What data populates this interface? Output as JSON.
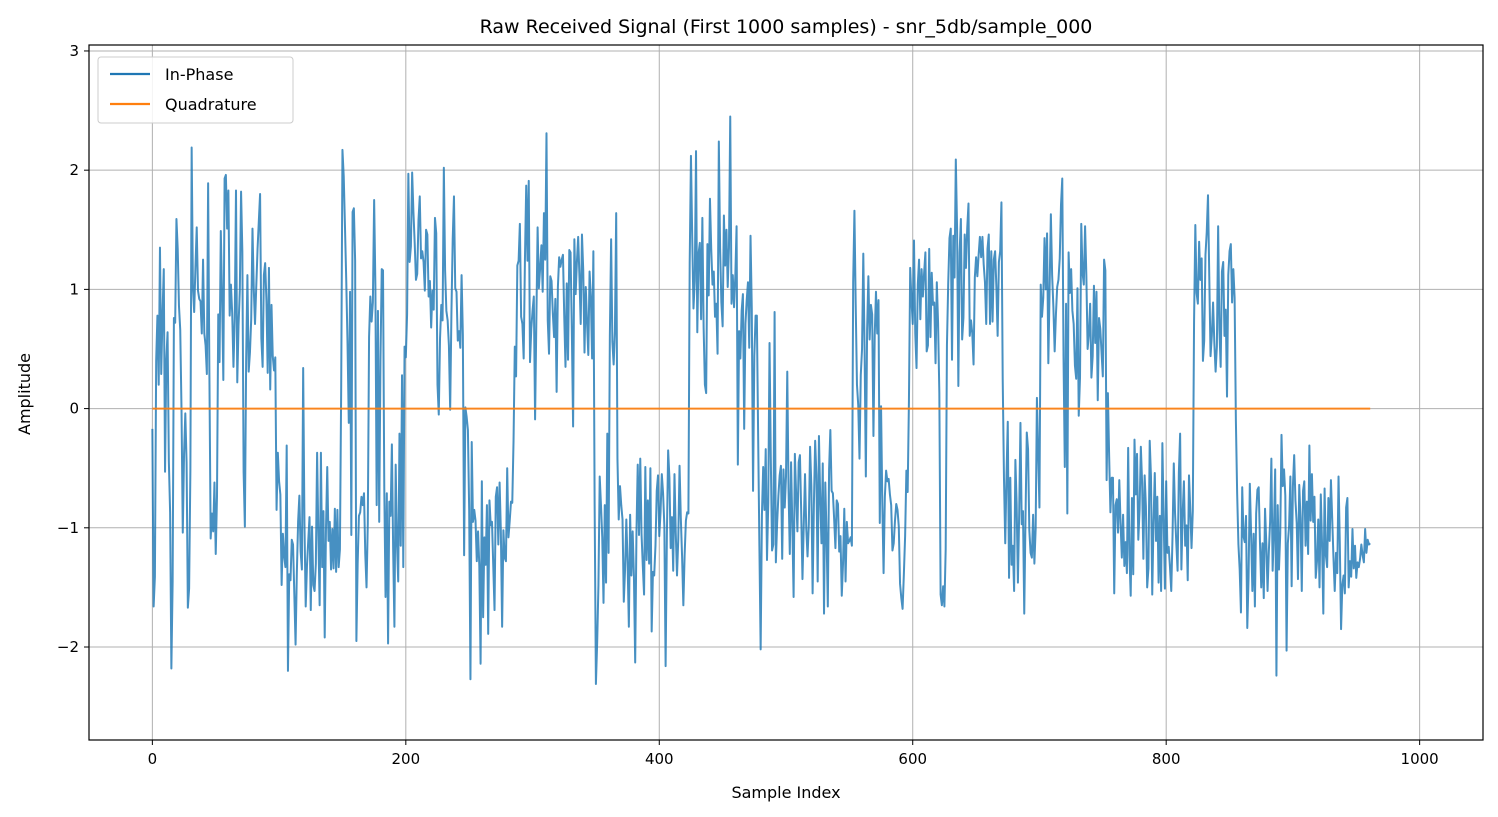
{
  "chart_data": {
    "type": "line",
    "title": "Raw Received Signal (First 1000 samples) - snr_5db/sample_000",
    "xlabel": "Sample Index",
    "ylabel": "Amplitude",
    "xlim": [
      -50,
      1050
    ],
    "ylim": [
      -2.78,
      3.05
    ],
    "x_ticks": [
      0,
      200,
      400,
      600,
      800,
      1000
    ],
    "y_ticks": [
      -2,
      -1,
      0,
      1,
      2,
      3
    ],
    "x_tick_labels": [
      "0",
      "200",
      "400",
      "600",
      "800",
      "1000"
    ],
    "y_tick_labels": [
      "−2",
      "−1",
      "0",
      "1",
      "2",
      "3"
    ],
    "grid": true,
    "legend_position": "top-left",
    "series": [
      {
        "name": "In-Phase",
        "color": "#1f77b4",
        "x_start": 0,
        "x_step": 1,
        "values": [
          -0.17,
          -1.66,
          -1.41,
          0.4,
          0.78,
          0.2,
          1.35,
          0.29,
          0.79,
          1.17,
          -0.53,
          0.41,
          0.64,
          -0.44,
          -0.87,
          -2.18,
          -1.45,
          0.76,
          0.72,
          1.59,
          1.34,
          0.86,
          0.66,
          -0.01,
          -1.04,
          -0.38,
          -0.04,
          -0.45,
          -1.67,
          -1.51,
          -0.52,
          2.19,
          1.02,
          0.81,
          1.19,
          1.52,
          0.99,
          0.92,
          0.9,
          0.63,
          1.25,
          0.63,
          0.53,
          0.29,
          1.89,
          0.3,
          -1.09,
          -0.88,
          -1.03,
          -0.62,
          -1.22,
          -0.74,
          0.79,
          0.39,
          1.49,
          0.94,
          0.24,
          1.93,
          1.96,
          1.51,
          1.83,
          0.78,
          1.04,
          0.8,
          0.35,
          0.76,
          1.83,
          0.22,
          0.7,
          0.99,
          1.82,
          1.32,
          -0.53,
          -0.99,
          0.4,
          1.12,
          0.31,
          0.47,
          0.75,
          1.51,
          1.01,
          0.71,
          1.03,
          1.34,
          1.57,
          1.8,
          0.59,
          0.35,
          1.12,
          1.22,
          0.91,
          0.3,
          1.18,
          0.16,
          0.87,
          0.44,
          0.32,
          0.43,
          -0.85,
          -0.37,
          -0.61,
          -0.72,
          -1.48,
          -1.05,
          -1.24,
          -1.33,
          -0.31,
          -2.2,
          -1.39,
          -1.44,
          -1.1,
          -1.14,
          -1.55,
          -1.98,
          -1.38,
          -0.95,
          -0.73,
          -1.2,
          -1.35,
          0.34,
          -0.96,
          -1.66,
          -1.32,
          -1.11,
          -0.91,
          -1.69,
          -0.99,
          -1.48,
          -1.53,
          -1.3,
          -0.37,
          -1.07,
          -1.65,
          -0.37,
          -1.33,
          -0.86,
          -1.92,
          -1.01,
          -0.49,
          -1.11,
          -0.95,
          -1.35,
          -1.01,
          -1.34,
          -0.84,
          -1.37,
          -0.85,
          -1.33,
          -1.18,
          0.18,
          2.17,
          1.95,
          1.52,
          1.07,
          0.55,
          -0.12,
          0.98,
          -1.06,
          1.65,
          1.68,
          1.24,
          -1.95,
          -1.3,
          -0.9,
          -0.87,
          -0.74,
          -0.81,
          -0.71,
          -1.22,
          -1.5,
          -0.96,
          0.6,
          0.94,
          0.73,
          0.89,
          1.75,
          1.02,
          -0.81,
          0.82,
          -0.95,
          0.41,
          1.17,
          1.16,
          -0.66,
          -1.58,
          -0.71,
          -1.97,
          -0.78,
          -0.9,
          -0.3,
          -1.18,
          -1.83,
          -0.47,
          -1.13,
          -1.45,
          -0.21,
          -1.15,
          0.28,
          -1.33,
          0.52,
          0.43,
          0.79,
          1.97,
          1.23,
          1.36,
          1.98,
          1.65,
          1.39,
          1.08,
          1.13,
          1.58,
          1.78,
          1.26,
          1.32,
          1.23,
          0.99,
          1.5,
          1.46,
          0.94,
          1.07,
          0.68,
          0.99,
          0.83,
          1.6,
          1.47,
          0.2,
          -0.05,
          0.59,
          0.87,
          0.74,
          2.02,
          1.16,
          0.82,
          0.74,
          0.53,
          -0.01,
          0.81,
          1.42,
          1.78,
          1.01,
          0.98,
          0.57,
          0.65,
          0.51,
          1.12,
          0.62,
          -1.23,
          0.01,
          -0.07,
          -0.18,
          -0.85,
          -2.27,
          -0.28,
          -0.95,
          -0.85,
          -0.94,
          -1.28,
          -1.03,
          -1.32,
          -2.14,
          -0.61,
          -1.75,
          -1.08,
          -1.31,
          -0.81,
          -1.89,
          -0.77,
          -0.98,
          -0.95,
          -1.32,
          -1.69,
          -0.74,
          -0.66,
          -1.14,
          -0.62,
          -1.03,
          -1.83,
          -1.02,
          -1.25,
          -1.28,
          -0.5,
          -1.08,
          -0.94,
          -0.78,
          -0.79,
          -0.27,
          0.52,
          0.27,
          1.2,
          1.24,
          1.55,
          0.77,
          0.71,
          0.42,
          1.25,
          1.87,
          1.24,
          1.91,
          0.39,
          0.67,
          0.82,
          0.94,
          -0.09,
          0.74,
          1.52,
          1.01,
          1.18,
          1.37,
          0.98,
          1.64,
          1.25,
          2.31,
          0.74,
          0.46,
          1.11,
          1.07,
          0.8,
          0.6,
          0.92,
          0.14,
          1.02,
          1.27,
          1.19,
          1.25,
          1.29,
          0.78,
          0.35,
          1.05,
          0.41,
          1.33,
          1.31,
          0.66,
          -0.15,
          1.42,
          0.96,
          1.23,
          1.44,
          1.11,
          0.71,
          1.46,
          1.16,
          0.47,
          1.02,
          0.72,
          0.45,
          1.15,
          0.94,
          0.42,
          1.32,
          -0.81,
          -2.31,
          -1.96,
          -1.48,
          -0.57,
          -0.81,
          -1.08,
          -1.63,
          -0.81,
          -1.46,
          -0.21,
          -1.21,
          0.61,
          1.42,
          0.56,
          0.37,
          0.65,
          1.64,
          -0.42,
          -0.93,
          -0.65,
          -0.81,
          -0.93,
          -1.62,
          -1.35,
          -0.93,
          -1.29,
          -1.83,
          -0.89,
          -1.4,
          -1.03,
          -1.41,
          -2.13,
          -1.04,
          -0.47,
          -1.06,
          -0.42,
          -1.05,
          -1.32,
          -1.56,
          -0.49,
          -1.27,
          -0.77,
          -1.3,
          -0.5,
          -1.87,
          -1.37,
          -1.4,
          -1.15,
          -0.69,
          -0.56,
          -1.07,
          -0.87,
          -0.55,
          -0.71,
          -0.98,
          -2.16,
          -1.06,
          -0.35,
          -0.58,
          -1.17,
          -0.91,
          -1.36,
          -0.55,
          -1.04,
          -1.4,
          -1.09,
          -0.48,
          -0.92,
          -1.24,
          -1.65,
          -1.23,
          -0.94,
          -0.87,
          -0.88,
          1.22,
          2.12,
          1.44,
          0.84,
          1.07,
          2.16,
          0.64,
          1.3,
          1.39,
          0.75,
          1.6,
          0.68,
          0.2,
          0.13,
          1.38,
          0.95,
          1.76,
          1.34,
          1.04,
          1.15,
          0.77,
          0.88,
          0.46,
          2.24,
          1.35,
          0.89,
          0.69,
          1.62,
          1.2,
          1.5,
          1.02,
          1.35,
          2.45,
          0.88,
          1.12,
          0.85,
          1.11,
          1.53,
          -0.47,
          0.65,
          0.42,
          0.82,
          0.96,
          -0.17,
          0.71,
          0.91,
          1.06,
          0.51,
          1.45,
          0.84,
          -0.69,
          0.44,
          0.78,
          0.78,
          -0.21,
          -1.15,
          -2.02,
          -0.89,
          -0.49,
          -0.85,
          -0.34,
          -1.27,
          -0.79,
          0.55,
          -0.41,
          -1.19,
          -1.14,
          0.81,
          -1.29,
          -0.96,
          -0.73,
          -0.56,
          -0.48,
          -1.26,
          -0.51,
          -0.83,
          -0.57,
          0.31,
          -0.67,
          -1.22,
          -0.45,
          -0.98,
          -1.58,
          -0.38,
          -0.72,
          -1.03,
          -0.45,
          -0.39,
          -0.87,
          -1.43,
          -0.98,
          -0.55,
          -1.01,
          -1.24,
          -0.97,
          -0.32,
          -0.65,
          -1.55,
          -0.81,
          -0.27,
          -0.56,
          -1.45,
          -0.23,
          -0.76,
          -1.13,
          -0.46,
          -1.72,
          -0.62,
          -1.07,
          -1.66,
          -0.51,
          -0.18,
          -0.69,
          -0.71,
          -0.93,
          -1.17,
          -0.77,
          -0.8,
          -1.2,
          -1.07,
          -1.57,
          -1.3,
          -0.84,
          -1.45,
          -0.95,
          -1.13,
          -1.11,
          -1.08,
          -1.15,
          1.06,
          1.66,
          0.87,
          0.2,
          0.03,
          -0.42,
          0.28,
          0.5,
          1.3,
          0.51,
          -0.57,
          0.66,
          1.11,
          0.58,
          0.87,
          0.79,
          -0.23,
          0.61,
          0.98,
          0.63,
          0.91,
          -0.96,
          0.02,
          -0.79,
          -1.38,
          -0.74,
          -0.52,
          -0.61,
          -0.59,
          -0.72,
          -0.81,
          -1.19,
          -1.13,
          -0.94,
          -0.8,
          -0.85,
          -0.99,
          -1.47,
          -1.59,
          -1.68,
          -1.39,
          -1.07,
          -0.52,
          -0.7,
          0.06,
          1.18,
          0.91,
          0.71,
          1.41,
          0.63,
          0.34,
          1.04,
          1.25,
          0.75,
          1.17,
          0.94,
          1.14,
          1.31,
          0.48,
          0.53,
          1.34,
          0.6,
          1.14,
          0.87,
          0.89,
          0.38,
          1.06,
          0.72,
          0.13,
          -1.56,
          -1.65,
          -1.49,
          -1.66,
          -1.18,
          0.53,
          1.05,
          1.43,
          1.51,
          0.41,
          1.45,
          1.1,
          2.09,
          1.51,
          0.19,
          1.31,
          1.59,
          0.58,
          0.76,
          1.46,
          1.18,
          1.51,
          1.72,
          0.61,
          0.74,
          0.63,
          0.37,
          1.1,
          1.27,
          1.11,
          1.29,
          1.44,
          1.27,
          1.44,
          1.21,
          1.06,
          0.71,
          1.34,
          1.46,
          0.71,
          1.32,
          0.73,
          1.25,
          1.32,
          1.02,
          0.61,
          1.23,
          1.32,
          1.73,
          0.25,
          -0.58,
          -1.13,
          -0.56,
          -0.11,
          -1.42,
          -0.58,
          -1.31,
          -1.15,
          -1.53,
          -0.43,
          -0.8,
          -1.46,
          -0.88,
          -0.12,
          -0.97,
          -0.86,
          -1.72,
          -0.91,
          -0.2,
          -0.34,
          -1.02,
          -1.21,
          -1.25,
          -0.89,
          -1.3,
          -1.01,
          0.09,
          -0.39,
          -0.83,
          1.04,
          0.77,
          0.93,
          1.43,
          1.0,
          1.47,
          0.38,
          1.0,
          1.63,
          1.12,
          0.85,
          0.48,
          0.79,
          1.02,
          1.08,
          1.26,
          1.71,
          1.93,
          0.43,
          -0.49,
          0.88,
          -0.88,
          1.31,
          0.97,
          1.17,
          0.82,
          0.71,
          0.36,
          0.25,
          1.01,
          -0.06,
          0.26,
          1.55,
          1.14,
          1.04,
          1.53,
          1.12,
          0.5,
          0.63,
          0.88,
          0.26,
          0.44,
          1.03,
          0.55,
          0.98,
          0.07,
          0.76,
          0.67,
          0.47,
          0.27,
          1.25,
          1.16,
          -0.6,
          0.13,
          -0.4,
          -0.87,
          -0.58,
          -0.58,
          -1.55,
          -0.81,
          -0.76,
          -1.04,
          -0.6,
          -0.96,
          -1.25,
          -0.89,
          -1.32,
          -1.12,
          -1.38,
          -0.33,
          -1.23,
          -1.57,
          -0.75,
          -1.39,
          -0.26,
          -0.72,
          -0.38,
          -1.1,
          -0.85,
          -0.32,
          -0.62,
          -1.26,
          -0.56,
          -0.82,
          -1.5,
          -1.34,
          -0.27,
          -0.57,
          -1.56,
          -0.95,
          -0.54,
          -1.11,
          -0.74,
          -1.46,
          -0.9,
          -1.53,
          -0.29,
          -0.91,
          -1.51,
          -0.61,
          -1.21,
          -1.16,
          -1.33,
          -1.53,
          -1.07,
          -0.46,
          -0.88,
          -1.13,
          -1.36,
          -0.54,
          -0.21,
          -1.35,
          -0.88,
          -0.61,
          -1.15,
          -0.98,
          -1.44,
          -0.56,
          -0.84,
          -1.17,
          -0.86,
          0.73,
          1.54,
          0.97,
          0.88,
          1.4,
          1.08,
          1.26,
          0.4,
          0.57,
          1.29,
          1.48,
          1.79,
          1.11,
          0.44,
          0.61,
          0.89,
          0.55,
          0.31,
          0.52,
          1.53,
          0.66,
          0.35,
          1.15,
          1.23,
          0.61,
          0.83,
          0.1,
          1.12,
          1.32,
          1.38,
          0.89,
          1.17,
          0.93,
          -0.1,
          -0.71,
          -1.14,
          -1.35,
          -1.71,
          -0.66,
          -1.07,
          -1.12,
          -0.9,
          -1.84,
          -1.42,
          -0.63,
          -1.04,
          -1.53,
          -1.05,
          -1.66,
          -0.88,
          -0.68,
          -0.66,
          -1.12,
          -1.5,
          -1.13,
          -1.59,
          -0.84,
          -1.13,
          -1.53,
          -1.2,
          -0.95,
          -0.42,
          -1.36,
          -1.03,
          -0.51,
          -2.24,
          -0.81,
          -1.35,
          -1.05,
          -0.22,
          -0.65,
          -0.51,
          -0.73,
          -2.03,
          -1.13,
          -0.98,
          -0.57,
          -1.49,
          -0.65,
          -0.39,
          -0.77,
          -0.96,
          -1.43,
          -0.64,
          -0.92,
          -1.53,
          -0.69,
          -0.61,
          -1.15,
          -0.78,
          -1.22,
          -0.31,
          -0.94,
          -0.55,
          -0.95,
          -0.74,
          -1.42,
          -1.28,
          -0.93,
          -1.5,
          -0.72,
          -1.14,
          -1.72,
          -0.67,
          -1.23,
          -1.33,
          -0.75,
          -1.11,
          -0.6,
          -0.92,
          -1.25,
          -1.53,
          -1.21,
          -1.38,
          -0.57,
          -1.13,
          -1.85,
          -1.48,
          -1.4,
          -1.55,
          -0.83,
          -0.75,
          -1.5,
          -1.28,
          -1.41,
          -1.01,
          -1.34,
          -1.15,
          -1.42,
          -1.29,
          -1.33,
          -1.26,
          -1.14,
          -1.23,
          -1.29,
          -1.01,
          -1.21,
          -1.1,
          -1.14,
          -1.13
        ]
      },
      {
        "name": "Quadrature",
        "color": "#ff7f0e",
        "x_start": 0,
        "x_step": 1,
        "constant_value": 0
      }
    ]
  }
}
